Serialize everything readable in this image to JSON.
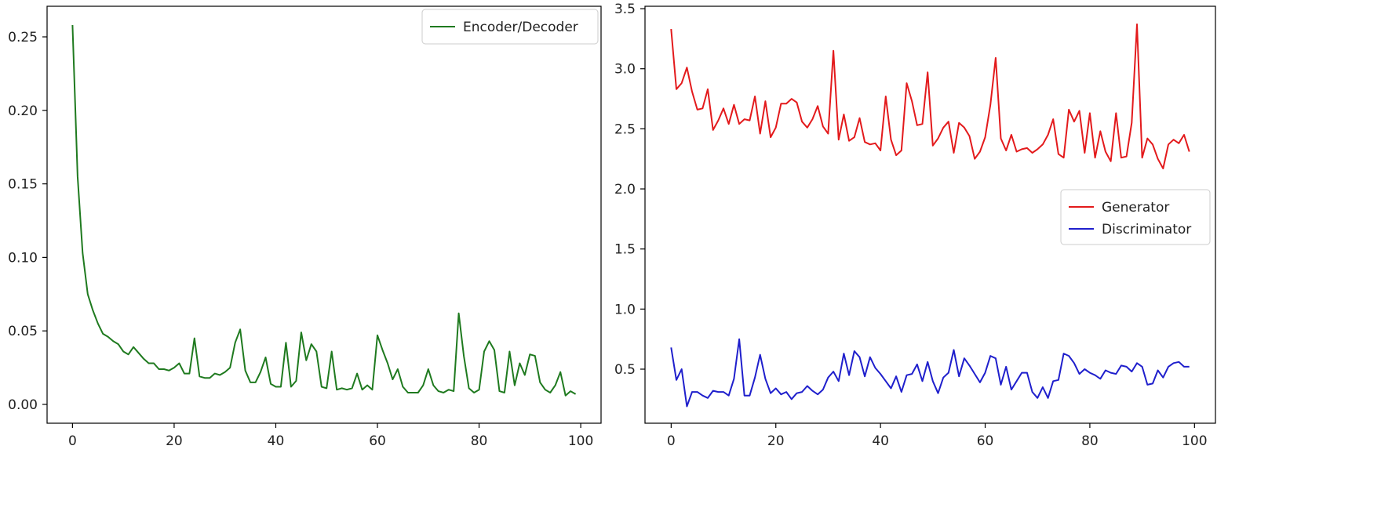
{
  "chart_data": [
    {
      "type": "line",
      "title": "",
      "xlabel": "",
      "ylabel": "",
      "xlim": [
        -5,
        104
      ],
      "ylim": [
        -0.0128,
        0.2708
      ],
      "xticks": [
        0,
        20,
        40,
        60,
        80,
        100
      ],
      "yticks": [
        0.0,
        0.05,
        0.1,
        0.15,
        0.2,
        0.25
      ],
      "xtick_labels": [
        "0",
        "20",
        "40",
        "60",
        "80",
        "100"
      ],
      "ytick_labels": [
        "0.00",
        "0.05",
        "0.10",
        "0.15",
        "0.20",
        "0.25"
      ],
      "legend_position": "top-right",
      "series": [
        {
          "name": "Encoder/Decoder",
          "color": "#1f7a1f",
          "x": [
            0,
            1,
            2,
            3,
            4,
            5,
            6,
            7,
            8,
            9,
            10,
            11,
            12,
            13,
            14,
            15,
            16,
            17,
            18,
            19,
            20,
            21,
            22,
            23,
            24,
            25,
            26,
            27,
            28,
            29,
            30,
            31,
            32,
            33,
            34,
            35,
            36,
            37,
            38,
            39,
            40,
            41,
            42,
            43,
            44,
            45,
            46,
            47,
            48,
            49,
            50,
            51,
            52,
            53,
            54,
            55,
            56,
            57,
            58,
            59,
            60,
            61,
            62,
            63,
            64,
            65,
            66,
            67,
            68,
            69,
            70,
            71,
            72,
            73,
            74,
            75,
            76,
            77,
            78,
            79,
            80,
            81,
            82,
            83,
            84,
            85,
            86,
            87,
            88,
            89,
            90,
            91,
            92,
            93,
            94,
            95,
            96,
            97,
            98,
            99
          ],
          "values": [
            0.258,
            0.155,
            0.103,
            0.075,
            0.064,
            0.055,
            0.048,
            0.046,
            0.043,
            0.041,
            0.036,
            0.034,
            0.039,
            0.035,
            0.031,
            0.028,
            0.028,
            0.024,
            0.024,
            0.023,
            0.025,
            0.028,
            0.021,
            0.021,
            0.045,
            0.019,
            0.018,
            0.018,
            0.021,
            0.02,
            0.022,
            0.025,
            0.042,
            0.051,
            0.023,
            0.015,
            0.015,
            0.022,
            0.032,
            0.014,
            0.012,
            0.012,
            0.042,
            0.012,
            0.016,
            0.049,
            0.03,
            0.041,
            0.036,
            0.012,
            0.011,
            0.036,
            0.01,
            0.011,
            0.01,
            0.011,
            0.021,
            0.01,
            0.013,
            0.01,
            0.047,
            0.037,
            0.028,
            0.017,
            0.024,
            0.012,
            0.008,
            0.008,
            0.008,
            0.013,
            0.024,
            0.013,
            0.009,
            0.008,
            0.01,
            0.009,
            0.062,
            0.033,
            0.011,
            0.008,
            0.01,
            0.036,
            0.043,
            0.037,
            0.009,
            0.008,
            0.036,
            0.013,
            0.028,
            0.02,
            0.034,
            0.033,
            0.015,
            0.01,
            0.008,
            0.013,
            0.022,
            0.006,
            0.009,
            0.007
          ]
        }
      ]
    },
    {
      "type": "line",
      "title": "",
      "xlabel": "",
      "ylabel": "",
      "xlim": [
        -5,
        104
      ],
      "ylim": [
        0.05,
        3.52
      ],
      "xticks": [
        0,
        20,
        40,
        60,
        80,
        100
      ],
      "yticks": [
        0.5,
        1.0,
        1.5,
        2.0,
        2.5,
        3.0,
        3.5
      ],
      "xtick_labels": [
        "0",
        "20",
        "40",
        "60",
        "80",
        "100"
      ],
      "ytick_labels": [
        "0.5",
        "1.0",
        "1.5",
        "2.0",
        "2.5",
        "3.0",
        "3.5"
      ],
      "legend_position": "center-right",
      "series": [
        {
          "name": "Generator",
          "color": "#e31a1c",
          "x": [
            0,
            1,
            2,
            3,
            4,
            5,
            6,
            7,
            8,
            9,
            10,
            11,
            12,
            13,
            14,
            15,
            16,
            17,
            18,
            19,
            20,
            21,
            22,
            23,
            24,
            25,
            26,
            27,
            28,
            29,
            30,
            31,
            32,
            33,
            34,
            35,
            36,
            37,
            38,
            39,
            40,
            41,
            42,
            43,
            44,
            45,
            46,
            47,
            48,
            49,
            50,
            51,
            52,
            53,
            54,
            55,
            56,
            57,
            58,
            59,
            60,
            61,
            62,
            63,
            64,
            65,
            66,
            67,
            68,
            69,
            70,
            71,
            72,
            73,
            74,
            75,
            76,
            77,
            78,
            79,
            80,
            81,
            82,
            83,
            84,
            85,
            86,
            87,
            88,
            89,
            90,
            91,
            92,
            93,
            94,
            95,
            96,
            97,
            98,
            99
          ],
          "values": [
            3.33,
            2.83,
            2.88,
            3.01,
            2.81,
            2.66,
            2.67,
            2.83,
            2.49,
            2.57,
            2.67,
            2.54,
            2.7,
            2.54,
            2.58,
            2.57,
            2.77,
            2.46,
            2.73,
            2.43,
            2.51,
            2.71,
            2.71,
            2.75,
            2.72,
            2.56,
            2.51,
            2.58,
            2.69,
            2.52,
            2.46,
            3.15,
            2.41,
            2.62,
            2.4,
            2.43,
            2.59,
            2.39,
            2.37,
            2.38,
            2.32,
            2.77,
            2.41,
            2.28,
            2.32,
            2.88,
            2.73,
            2.53,
            2.54,
            2.97,
            2.36,
            2.42,
            2.51,
            2.56,
            2.3,
            2.55,
            2.51,
            2.44,
            2.25,
            2.31,
            2.43,
            2.7,
            3.09,
            2.42,
            2.32,
            2.45,
            2.31,
            2.33,
            2.34,
            2.3,
            2.33,
            2.37,
            2.45,
            2.58,
            2.29,
            2.26,
            2.66,
            2.56,
            2.65,
            2.3,
            2.63,
            2.26,
            2.48,
            2.31,
            2.23,
            2.63,
            2.26,
            2.27,
            2.55,
            3.37,
            2.26,
            2.42,
            2.37,
            2.25,
            2.17,
            2.37,
            2.41,
            2.38,
            2.45,
            2.31
          ]
        },
        {
          "name": "Discriminator",
          "color": "#1f1fcc",
          "x": [
            0,
            1,
            2,
            3,
            4,
            5,
            6,
            7,
            8,
            9,
            10,
            11,
            12,
            13,
            14,
            15,
            16,
            17,
            18,
            19,
            20,
            21,
            22,
            23,
            24,
            25,
            26,
            27,
            28,
            29,
            30,
            31,
            32,
            33,
            34,
            35,
            36,
            37,
            38,
            39,
            40,
            41,
            42,
            43,
            44,
            45,
            46,
            47,
            48,
            49,
            50,
            51,
            52,
            53,
            54,
            55,
            56,
            57,
            58,
            59,
            60,
            61,
            62,
            63,
            64,
            65,
            66,
            67,
            68,
            69,
            70,
            71,
            72,
            73,
            74,
            75,
            76,
            77,
            78,
            79,
            80,
            81,
            82,
            83,
            84,
            85,
            86,
            87,
            88,
            89,
            90,
            91,
            92,
            93,
            94,
            95,
            96,
            97,
            98,
            99
          ],
          "values": [
            0.68,
            0.41,
            0.5,
            0.19,
            0.31,
            0.31,
            0.28,
            0.26,
            0.32,
            0.31,
            0.31,
            0.28,
            0.42,
            0.75,
            0.28,
            0.28,
            0.43,
            0.62,
            0.42,
            0.3,
            0.34,
            0.29,
            0.31,
            0.25,
            0.3,
            0.31,
            0.36,
            0.32,
            0.29,
            0.33,
            0.43,
            0.48,
            0.4,
            0.63,
            0.45,
            0.65,
            0.6,
            0.44,
            0.6,
            0.51,
            0.46,
            0.4,
            0.34,
            0.44,
            0.31,
            0.45,
            0.46,
            0.54,
            0.4,
            0.56,
            0.4,
            0.3,
            0.43,
            0.47,
            0.66,
            0.44,
            0.59,
            0.53,
            0.46,
            0.39,
            0.47,
            0.61,
            0.59,
            0.37,
            0.52,
            0.33,
            0.4,
            0.47,
            0.47,
            0.31,
            0.26,
            0.35,
            0.26,
            0.4,
            0.41,
            0.63,
            0.61,
            0.55,
            0.46,
            0.5,
            0.47,
            0.45,
            0.42,
            0.49,
            0.47,
            0.46,
            0.53,
            0.52,
            0.48,
            0.55,
            0.52,
            0.37,
            0.38,
            0.49,
            0.43,
            0.52,
            0.55,
            0.56,
            0.52,
            0.52
          ]
        }
      ]
    }
  ]
}
